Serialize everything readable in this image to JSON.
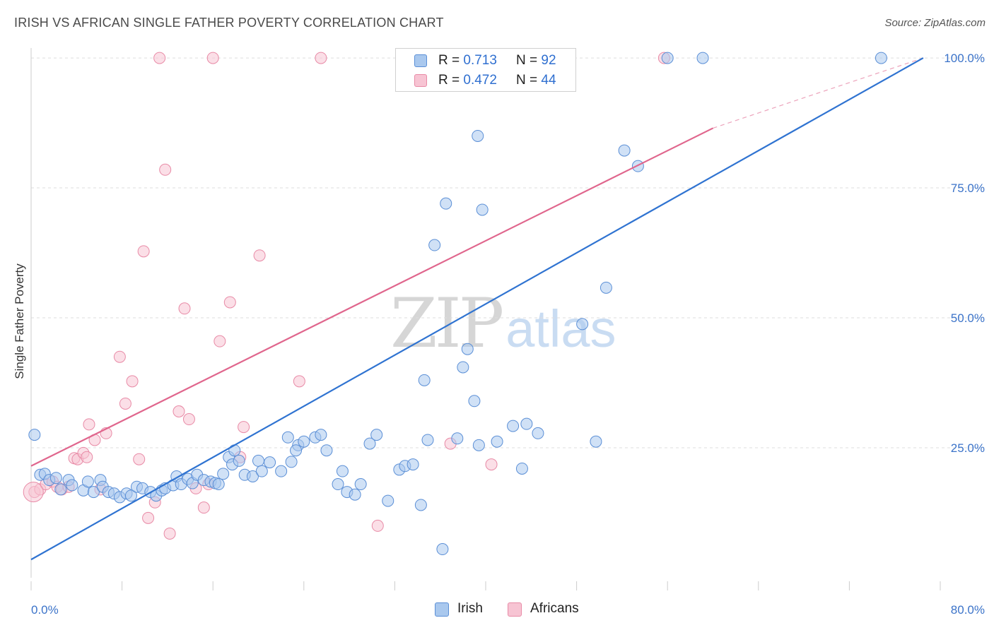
{
  "header": {
    "title": "IRISH VS AFRICAN SINGLE FATHER POVERTY CORRELATION CHART",
    "source": "Source: ZipAtlas.com"
  },
  "watermark": {
    "zip": "ZIP",
    "atlas": "atlas"
  },
  "colors": {
    "irish_fill": "#a9c8ee",
    "irish_stroke": "#5b8fd6",
    "irish_line": "#2f73d1",
    "african_fill": "#f7c4d3",
    "african_stroke": "#e88aa6",
    "african_line": "#e0668d",
    "tick_label": "#3b73c9",
    "grid": "#dddddd"
  },
  "legend": {
    "irish": {
      "r_label": "R = ",
      "r_value": "0.713",
      "n_label": "N = ",
      "n_value": "92"
    },
    "african": {
      "r_label": "R = ",
      "r_value": "0.472",
      "n_label": "N = ",
      "n_value": "44"
    }
  },
  "bottom_legend": {
    "irish": "Irish",
    "african": "Africans"
  },
  "chart_data": {
    "type": "scatter",
    "title": "IRISH VS AFRICAN SINGLE FATHER POVERTY CORRELATION CHART",
    "xlabel": "",
    "ylabel": "Single Father Poverty",
    "xlim": [
      0,
      80
    ],
    "ylim": [
      0,
      103
    ],
    "x_tick_labels": [
      "0.0%",
      "80.0%"
    ],
    "y_ticks": [
      25,
      50,
      75,
      100
    ],
    "y_tick_labels": [
      "25.0%",
      "50.0%",
      "75.0%",
      "100.0%"
    ],
    "grid": true,
    "legend_position": "top-center",
    "series": [
      {
        "name": "Irish",
        "r": 0.713,
        "n": 92,
        "trend": {
          "x": [
            0,
            78.5
          ],
          "y": [
            3.5,
            100
          ]
        },
        "points": [
          [
            0.3,
            27.5
          ],
          [
            0.8,
            19.8
          ],
          [
            1.2,
            20
          ],
          [
            1.6,
            18.8
          ],
          [
            2.2,
            19.2
          ],
          [
            2.6,
            17
          ],
          [
            3.3,
            18.8
          ],
          [
            3.6,
            17.8
          ],
          [
            4.6,
            16.8
          ],
          [
            5,
            18.5
          ],
          [
            5.5,
            16.5
          ],
          [
            6.1,
            18.8
          ],
          [
            6.3,
            17.5
          ],
          [
            6.8,
            16.5
          ],
          [
            7.3,
            16.2
          ],
          [
            7.8,
            15.5
          ],
          [
            8.4,
            16.2
          ],
          [
            8.8,
            15.8
          ],
          [
            9.3,
            17.5
          ],
          [
            9.8,
            17.2
          ],
          [
            10.5,
            16.5
          ],
          [
            11,
            15.8
          ],
          [
            11.5,
            16.8
          ],
          [
            11.8,
            17.2
          ],
          [
            12.5,
            17.8
          ],
          [
            12.8,
            19.5
          ],
          [
            13.2,
            18
          ],
          [
            13.8,
            19
          ],
          [
            14.2,
            18.2
          ],
          [
            14.6,
            19.8
          ],
          [
            15.2,
            18.8
          ],
          [
            15.8,
            18.5
          ],
          [
            16.2,
            18.2
          ],
          [
            16.5,
            18
          ],
          [
            16.9,
            20
          ],
          [
            17.4,
            23.2
          ],
          [
            17.7,
            21.8
          ],
          [
            17.9,
            24.5
          ],
          [
            18.3,
            22.5
          ],
          [
            18.8,
            19.8
          ],
          [
            19.5,
            19.5
          ],
          [
            20,
            22.5
          ],
          [
            20.3,
            20.5
          ],
          [
            21,
            22.2
          ],
          [
            22,
            20.5
          ],
          [
            22.9,
            22.3
          ],
          [
            23.5,
            25.5
          ],
          [
            22.6,
            27
          ],
          [
            23.3,
            24.5
          ],
          [
            24,
            26.2
          ],
          [
            25,
            27
          ],
          [
            25.5,
            27.5
          ],
          [
            26,
            24.5
          ],
          [
            27,
            18
          ],
          [
            27.4,
            20.5
          ],
          [
            27.8,
            16.5
          ],
          [
            28.5,
            16
          ],
          [
            29,
            18
          ],
          [
            29.8,
            25.8
          ],
          [
            30.4,
            27.5
          ],
          [
            31.4,
            14.8
          ],
          [
            32.4,
            20.8
          ],
          [
            32.9,
            21.5
          ],
          [
            33.6,
            21.8
          ],
          [
            34.3,
            14
          ],
          [
            34.6,
            38
          ],
          [
            34.9,
            26.5
          ],
          [
            35.5,
            64
          ],
          [
            36.2,
            5.5
          ],
          [
            36.5,
            72
          ],
          [
            37.5,
            26.8
          ],
          [
            38,
            40.5
          ],
          [
            38.4,
            44
          ],
          [
            39,
            34
          ],
          [
            39.4,
            25.5
          ],
          [
            39.3,
            85
          ],
          [
            39.7,
            70.8
          ],
          [
            39.8,
            100
          ],
          [
            41,
            26.2
          ],
          [
            42.4,
            29.2
          ],
          [
            43.2,
            21
          ],
          [
            43.6,
            29.6
          ],
          [
            44.6,
            27.8
          ],
          [
            45.6,
            100
          ],
          [
            47.3,
            100
          ],
          [
            48.5,
            48.8
          ],
          [
            49.7,
            26.2
          ],
          [
            50.6,
            55.8
          ],
          [
            52.2,
            82.2
          ],
          [
            53.4,
            79.2
          ],
          [
            56,
            100
          ],
          [
            59.1,
            100
          ],
          [
            74.8,
            100
          ]
        ]
      },
      {
        "name": "Africans",
        "r": 0.472,
        "n": 44,
        "trend": {
          "x": [
            0,
            60
          ],
          "y": [
            21.5,
            86.5
          ],
          "extrapolated_to": [
            78.5,
            100
          ]
        },
        "points": [
          [
            0.3,
            16.5
          ],
          [
            0.8,
            17
          ],
          [
            1.3,
            18
          ],
          [
            1.9,
            18.5
          ],
          [
            2.3,
            17.5
          ],
          [
            2.7,
            17
          ],
          [
            3.3,
            17.5
          ],
          [
            3.8,
            23
          ],
          [
            4.1,
            22.8
          ],
          [
            4.6,
            24
          ],
          [
            4.9,
            23.2
          ],
          [
            5.1,
            29.5
          ],
          [
            5.6,
            26.5
          ],
          [
            6.1,
            17
          ],
          [
            6.6,
            27.8
          ],
          [
            7.8,
            42.5
          ],
          [
            8.3,
            33.5
          ],
          [
            8.9,
            37.8
          ],
          [
            9.5,
            22.8
          ],
          [
            9.9,
            62.8
          ],
          [
            10.3,
            11.5
          ],
          [
            10.9,
            14.5
          ],
          [
            11.3,
            100
          ],
          [
            11.8,
            78.5
          ],
          [
            12.2,
            8.5
          ],
          [
            13,
            32
          ],
          [
            13.5,
            51.8
          ],
          [
            13.9,
            30.5
          ],
          [
            14.5,
            17.2
          ],
          [
            15.2,
            13.5
          ],
          [
            15.6,
            18
          ],
          [
            16,
            100
          ],
          [
            16.6,
            45.5
          ],
          [
            17.5,
            53
          ],
          [
            18.4,
            23.2
          ],
          [
            18.7,
            29
          ],
          [
            20.1,
            62
          ],
          [
            23.6,
            37.8
          ],
          [
            25.5,
            100
          ],
          [
            30.5,
            10
          ],
          [
            36.9,
            25.8
          ],
          [
            40.9,
            100
          ],
          [
            40.5,
            21.8
          ],
          [
            55.7,
            100
          ]
        ]
      }
    ]
  }
}
